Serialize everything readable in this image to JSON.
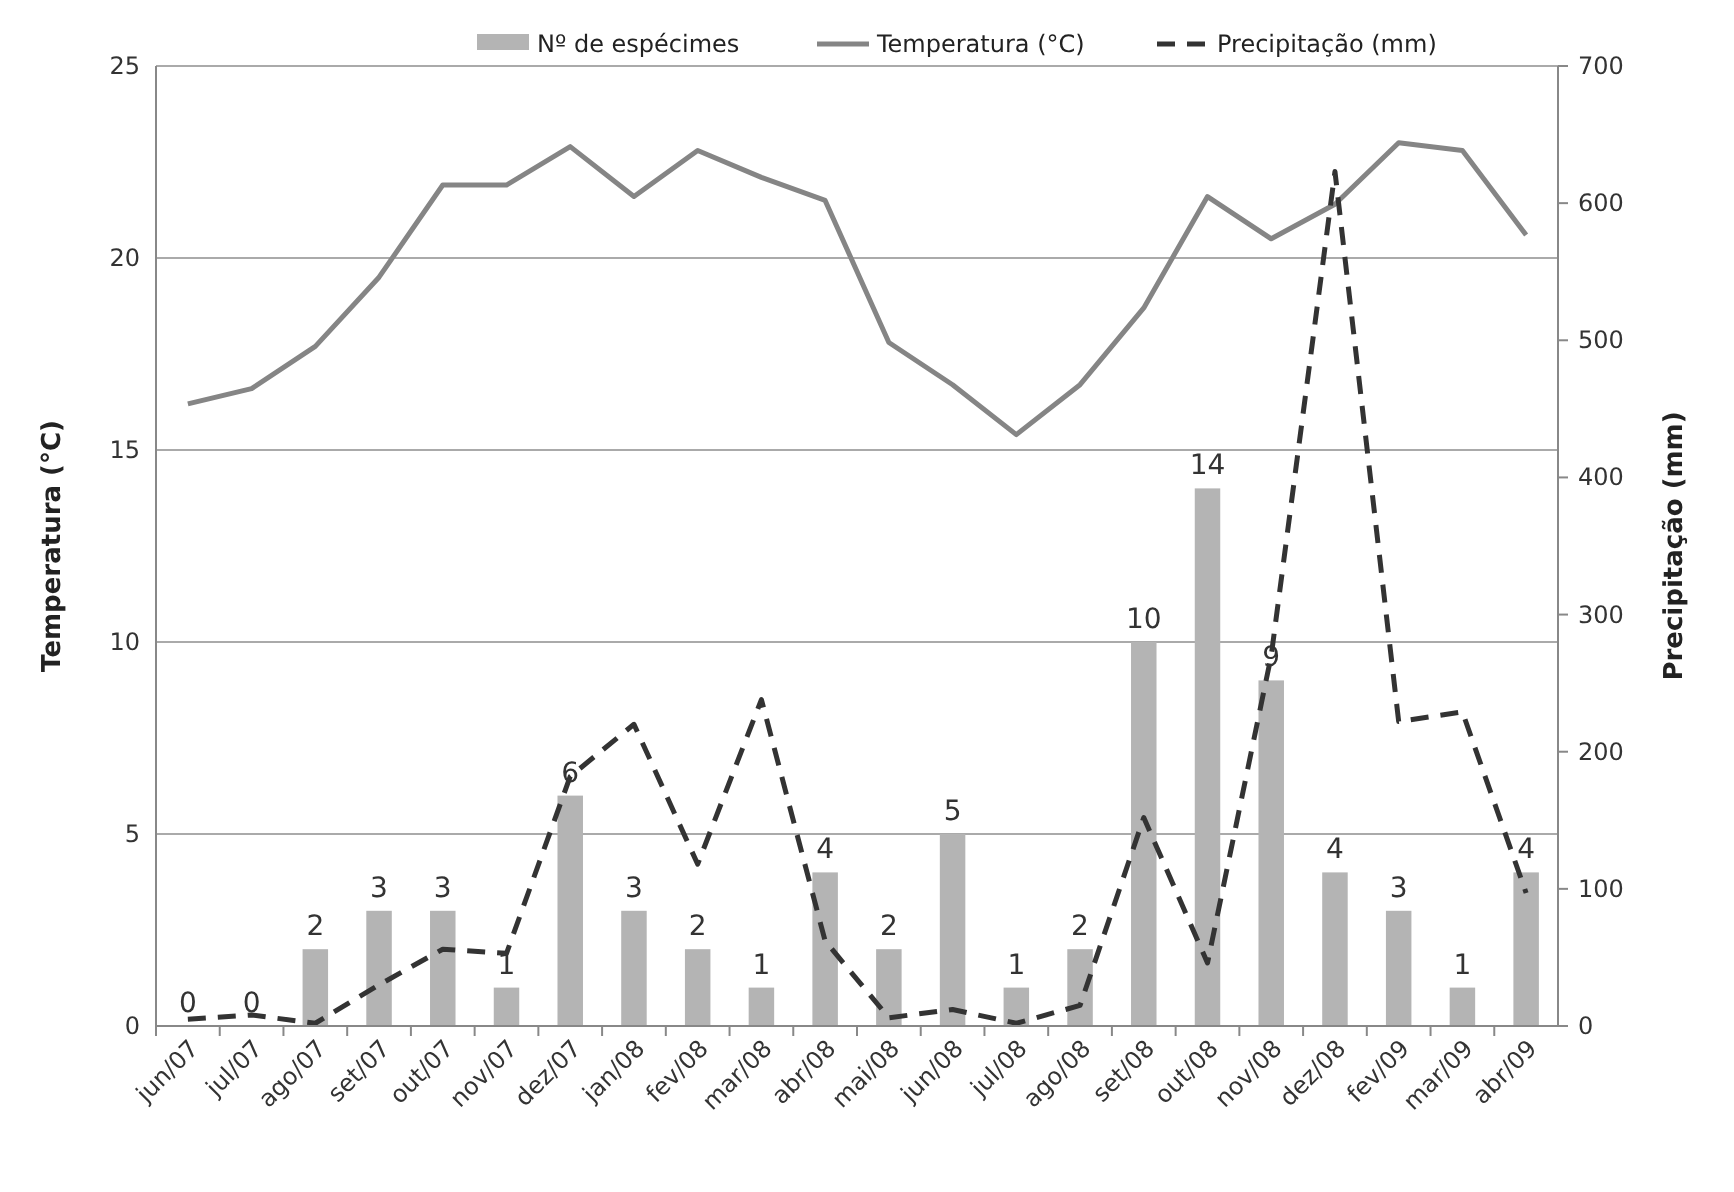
{
  "chart_data": {
    "type": "bar",
    "ylabel": "Temperatura (°C)",
    "y2label": "Precipitação (mm)",
    "categories": [
      "jun/07",
      "jul/07",
      "ago/07",
      "set/07",
      "out/07",
      "nov/07",
      "dez/07",
      "jan/08",
      "fev/08",
      "mar/08",
      "abr/08",
      "mai/08",
      "jun/08",
      "jul/08",
      "ago/08",
      "set/08",
      "out/08",
      "nov/08",
      "dez/08",
      "fev/09",
      "mar/09",
      "abr/09"
    ],
    "series": [
      {
        "name": "Nº de espécimes",
        "color": "#b4b4b4",
        "data_labels": true,
        "values": [
          0,
          0,
          2,
          3,
          3,
          1,
          6,
          3,
          2,
          1,
          4,
          2,
          5,
          1,
          2,
          10,
          14,
          9,
          4,
          3,
          1,
          4
        ]
      },
      {
        "name": "Temperatura (°C)",
        "type": "line",
        "color": "#858585",
        "line_style": "solid",
        "values": [
          16.2,
          16.6,
          17.7,
          19.5,
          21.9,
          21.9,
          22.9,
          21.6,
          22.8,
          22.1,
          21.5,
          17.8,
          16.7,
          15.4,
          16.7,
          18.7,
          21.6,
          20.5,
          21.4,
          23.0,
          22.8,
          20.6
        ]
      },
      {
        "name": "Precipitação (mm)",
        "type": "line",
        "axis": "y2",
        "color": "#333333",
        "line_style": "dashed",
        "values": [
          5,
          8,
          2,
          30,
          56,
          53,
          182,
          220,
          118,
          238,
          62,
          6,
          12,
          2,
          15,
          152,
          46,
          270,
          623,
          222,
          229,
          97
        ]
      }
    ],
    "ylim": [
      0,
      25
    ],
    "yticks": [
      0,
      5,
      10,
      15,
      20,
      25
    ],
    "y2lim": [
      0,
      700
    ],
    "y2ticks": [
      0,
      100,
      200,
      300,
      400,
      500,
      600,
      700
    ],
    "grid": "y",
    "legend": "top"
  }
}
